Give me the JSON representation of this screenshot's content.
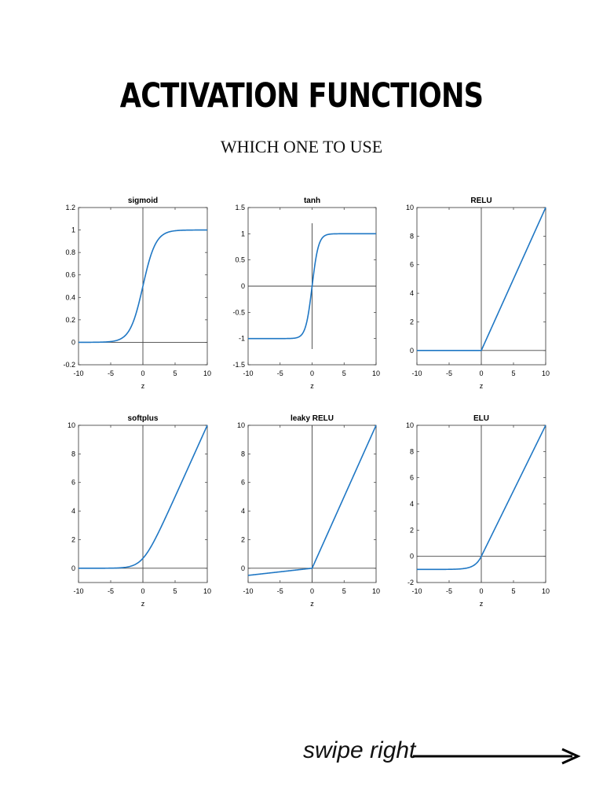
{
  "header": {
    "title": "ACTIVATION FUNCTIONS",
    "subtitle": "WHICH ONE TO USE"
  },
  "footer": {
    "swipe_text": "swipe right"
  },
  "colors": {
    "curve": "#1f77c4",
    "axis_line": "#444444",
    "frame": "#333333",
    "text": "#000000"
  },
  "chart_data": [
    {
      "type": "line",
      "title": "sigmoid",
      "xlabel": "z",
      "ylabel": "",
      "function": "sigmoid",
      "xlim": [
        -10,
        10
      ],
      "ylim": [
        -0.2,
        1.2
      ],
      "xticks": [
        -10,
        -5,
        0,
        5,
        10
      ],
      "yticks": [
        -0.2,
        0,
        0.2,
        0.4,
        0.6,
        0.8,
        1,
        1.2
      ],
      "x": [
        -10,
        -8,
        -6,
        -4,
        -2,
        0,
        2,
        4,
        6,
        8,
        10
      ],
      "y": [
        0.0,
        0.0003,
        0.0025,
        0.018,
        0.119,
        0.5,
        0.881,
        0.982,
        0.9975,
        0.9997,
        1.0
      ],
      "zero_lines": {
        "h": 0,
        "v": 0
      }
    },
    {
      "type": "line",
      "title": "tanh",
      "xlabel": "z",
      "ylabel": "",
      "function": "tanh",
      "xlim": [
        -10,
        10
      ],
      "ylim": [
        -1.5,
        1.5
      ],
      "xticks": [
        -10,
        -5,
        0,
        5,
        10
      ],
      "yticks": [
        -1.5,
        -1,
        -0.5,
        0,
        0.5,
        1,
        1.5
      ],
      "x": [
        -10,
        -4,
        -2,
        -1,
        0,
        1,
        2,
        4,
        10
      ],
      "y": [
        -1,
        -0.999,
        -0.964,
        -0.762,
        0,
        0.762,
        0.964,
        0.999,
        1
      ],
      "zero_lines": {
        "h": 0,
        "v": 0
      }
    },
    {
      "type": "line",
      "title": "RELU",
      "xlabel": "z",
      "ylabel": "",
      "function": "relu",
      "xlim": [
        -10,
        10
      ],
      "ylim": [
        -1,
        10
      ],
      "xticks": [
        -10,
        -5,
        0,
        5,
        10
      ],
      "yticks": [
        0,
        2,
        4,
        6,
        8,
        10
      ],
      "x": [
        -10,
        0,
        10
      ],
      "y": [
        0,
        0,
        10
      ],
      "zero_lines": {
        "h": 0,
        "v": 0
      }
    },
    {
      "type": "line",
      "title": "softplus",
      "xlabel": "z",
      "ylabel": "",
      "function": "softplus",
      "xlim": [
        -10,
        10
      ],
      "ylim": [
        -1,
        10
      ],
      "xticks": [
        -10,
        -5,
        0,
        5,
        10
      ],
      "yticks": [
        0,
        2,
        4,
        6,
        8,
        10
      ],
      "x": [
        -10,
        -5,
        -2,
        0,
        2,
        5,
        10
      ],
      "y": [
        0.0,
        0.007,
        0.127,
        0.693,
        2.127,
        5.007,
        10.0
      ],
      "zero_lines": {
        "h": 0,
        "v": 0
      }
    },
    {
      "type": "line",
      "title": "leaky RELU",
      "xlabel": "z",
      "ylabel": "",
      "function": "leaky_relu",
      "xlim": [
        -10,
        10
      ],
      "ylim": [
        -1,
        10
      ],
      "xticks": [
        -10,
        -5,
        0,
        5,
        10
      ],
      "yticks": [
        0,
        2,
        4,
        6,
        8,
        10
      ],
      "x": [
        -10,
        0,
        10
      ],
      "y": [
        -0.5,
        0,
        10
      ],
      "zero_lines": {
        "h": 0,
        "v": 0
      }
    },
    {
      "type": "line",
      "title": "ELU",
      "xlabel": "z",
      "ylabel": "",
      "function": "elu",
      "xlim": [
        -10,
        10
      ],
      "ylim": [
        -2,
        10
      ],
      "xticks": [
        -10,
        -5,
        0,
        5,
        10
      ],
      "yticks": [
        -2,
        0,
        2,
        4,
        6,
        8,
        10
      ],
      "x": [
        -10,
        -5,
        -2,
        -1,
        0,
        5,
        10
      ],
      "y": [
        -1,
        -0.993,
        -0.865,
        -0.632,
        0,
        5,
        10
      ],
      "zero_lines": {
        "h": 0,
        "v": 0
      }
    }
  ]
}
